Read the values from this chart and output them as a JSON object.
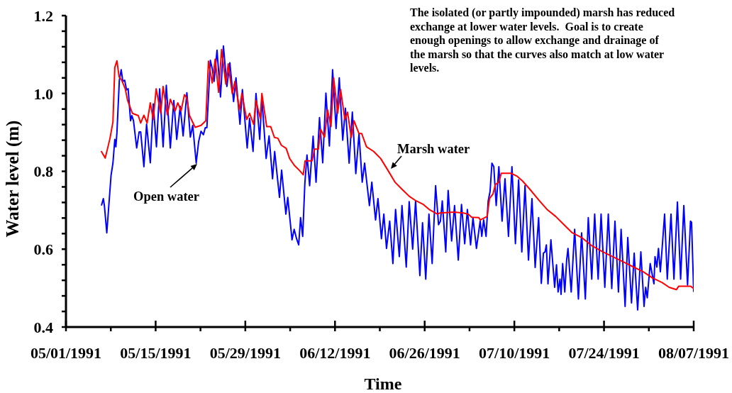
{
  "chart_data": {
    "type": "line",
    "xlabel": "Time",
    "ylabel": "Water level (m)",
    "annotations": [
      "The isolated (or partly impounded) marsh has reduced\nexchange at lower water levels.  Goal is to create\nenough openings to allow exchange and drainage of\nthe marsh so that the curves also match at low water\nlevels."
    ],
    "xlim": [
      "1991-05-01",
      "1991-08-07"
    ],
    "xticks": [
      {
        "value": "1991-05-01",
        "label": "05/01/1991"
      },
      {
        "value": "1991-05-08",
        "label": null
      },
      {
        "value": "1991-05-15",
        "label": "05/15/1991"
      },
      {
        "value": "1991-05-22",
        "label": null
      },
      {
        "value": "1991-05-29",
        "label": "05/29/1991"
      },
      {
        "value": "1991-06-05",
        "label": null
      },
      {
        "value": "1991-06-12",
        "label": "06/12/1991"
      },
      {
        "value": "1991-06-19",
        "label": null
      },
      {
        "value": "1991-06-26",
        "label": "06/26/1991"
      },
      {
        "value": "1991-07-03",
        "label": null
      },
      {
        "value": "1991-07-10",
        "label": "07/10/1991"
      },
      {
        "value": "1991-07-17",
        "label": null
      },
      {
        "value": "1991-07-24",
        "label": "07/24/1991"
      },
      {
        "value": "1991-07-31",
        "label": null
      },
      {
        "value": "1991-08-07",
        "label": "08/07/1991"
      }
    ],
    "ylim": [
      0.4,
      1.2
    ],
    "yticks": [
      0.4,
      {
        "value": 0.44,
        "label": null
      },
      {
        "value": 0.48,
        "label": null
      },
      {
        "value": 0.52,
        "label": null
      },
      {
        "value": 0.56,
        "label": null
      },
      0.6,
      {
        "value": 0.64,
        "label": null
      },
      {
        "value": 0.68,
        "label": null
      },
      {
        "value": 0.72,
        "label": null
      },
      {
        "value": 0.76,
        "label": null
      },
      0.8,
      {
        "value": 0.84,
        "label": null
      },
      {
        "value": 0.88,
        "label": null
      },
      {
        "value": 0.92,
        "label": null
      },
      {
        "value": 0.96,
        "label": null
      },
      {
        "value": 1,
        "label": "1.0"
      },
      {
        "value": 1.04,
        "label": null
      },
      {
        "value": 1.08,
        "label": null
      },
      {
        "value": 1.12,
        "label": null
      },
      {
        "value": 1.16,
        "label": null
      },
      1.2
    ],
    "series": [
      {
        "name": "Open water",
        "color": "#0000ff",
        "x": [
          "1991-05-06T13:00",
          "1991-05-06T20:00",
          "1991-05-07T00:00",
          "1991-05-07T09:00",
          "1991-05-08T01:00",
          "1991-05-08T08:00",
          "1991-05-08T15:00",
          "1991-05-08T19:00",
          "1991-05-08T23:00",
          "1991-05-09T08:00",
          "1991-05-09T15:00",
          "1991-05-09T21:00",
          "1991-05-10T04:00",
          "1991-05-10T11:00",
          "1991-05-10T17:00",
          "1991-05-11T02:00",
          "1991-05-11T07:00",
          "1991-05-11T13:00",
          "1991-05-12T01:00",
          "1991-05-12T10:00",
          "1991-05-12T16:00",
          "1991-05-13T04:00",
          "1991-05-13T14:00",
          "1991-05-14T04:00",
          "1991-05-14T15:00",
          "1991-05-15T03:00",
          "1991-05-15T15:00",
          "1991-05-16T04:00",
          "1991-05-16T16:00",
          "1991-05-17T07:00",
          "1991-05-17T20:00",
          "1991-05-18T07:00",
          "1991-05-18T20:00",
          "1991-05-19T07:00",
          "1991-05-19T21:00",
          "1991-05-20T10:00",
          "1991-05-20T19:00",
          "1991-05-21T08:00",
          "1991-05-21T17:00",
          "1991-05-22T02:00",
          "1991-05-22T11:00",
          "1991-05-22T18:00",
          "1991-05-23T00:00",
          "1991-05-23T13:00",
          "1991-05-23T20:00",
          "1991-05-24T03:00",
          "1991-05-24T14:00",
          "1991-05-25T03:00",
          "1991-05-25T14:00",
          "1991-05-26T03:00",
          "1991-05-26T14:00",
          "1991-05-27T04:00",
          "1991-05-27T13:00",
          "1991-05-28T04:00",
          "1991-05-28T13:00",
          "1991-05-29T07:00",
          "1991-05-29T16:00",
          "1991-05-30T05:00",
          "1991-05-30T16:00",
          "1991-05-31T06:00",
          "1991-05-31T14:00",
          "1991-06-01T06:00",
          "1991-06-01T17:00",
          "1991-06-02T06:00",
          "1991-06-02T14:00",
          "1991-06-03T08:00",
          "1991-06-03T16:00",
          "1991-06-04T08:00",
          "1991-06-04T15:00",
          "1991-06-05T07:00",
          "1991-06-05T15:00",
          "1991-06-06T00:00",
          "1991-06-06T08:00",
          "1991-06-06T15:00",
          "1991-06-06T23:00",
          "1991-06-07T07:00",
          "1991-06-07T15:00",
          "1991-06-08T01:00",
          "1991-06-08T14:00",
          "1991-06-09T01:00",
          "1991-06-09T14:00",
          "1991-06-10T02:00",
          "1991-06-10T14:00",
          "1991-06-11T03:00",
          "1991-06-11T15:00",
          "1991-06-12T04:00",
          "1991-06-12T16:00",
          "1991-06-13T05:00",
          "1991-06-13T15:00",
          "1991-06-14T05:00",
          "1991-06-14T17:00",
          "1991-06-15T06:00",
          "1991-06-15T18:00",
          "1991-06-16T06:00",
          "1991-06-16T15:00",
          "1991-06-17T09:00",
          "1991-06-17T18:00",
          "1991-06-18T08:00",
          "1991-06-18T17:00",
          "1991-06-19T06:00",
          "1991-06-19T15:00",
          "1991-06-20T01:00",
          "1991-06-20T13:00",
          "1991-06-21T01:00",
          "1991-06-21T11:00",
          "1991-06-22T01:00",
          "1991-06-22T11:00",
          "1991-06-23T03:00",
          "1991-06-23T14:00",
          "1991-06-24T03:00",
          "1991-06-24T14:00",
          "1991-06-25T06:00",
          "1991-06-25T16:00",
          "1991-06-26T04:00",
          "1991-06-26T16:00",
          "1991-06-27T04:00",
          "1991-06-27T17:00",
          "1991-06-28T04:00",
          "1991-06-28T11:00",
          "1991-06-28T18:00",
          "1991-06-29T07:00",
          "1991-06-29T16:00",
          "1991-06-30T05:00",
          "1991-06-30T16:00",
          "1991-07-01T06:00",
          "1991-07-01T18:00",
          "1991-07-02T06:00",
          "1991-07-02T16:00",
          "1991-07-03T04:00",
          "1991-07-03T13:00",
          "1991-07-04T02:00",
          "1991-07-04T16:00",
          "1991-07-04T22:00",
          "1991-07-05T05:00",
          "1991-07-05T14:00",
          "1991-07-05T22:00",
          "1991-07-06T05:00",
          "1991-07-06T12:00",
          "1991-07-06T19:00",
          "1991-07-07T04:00",
          "1991-07-07T14:00",
          "1991-07-08T02:00",
          "1991-07-08T13:00",
          "1991-07-09T02:00",
          "1991-07-09T15:00",
          "1991-07-10T04:00",
          "1991-07-10T16:00",
          "1991-07-11T04:00",
          "1991-07-11T16:00",
          "1991-07-12T05:00",
          "1991-07-12T18:00",
          "1991-07-13T06:00",
          "1991-07-13T19:00",
          "1991-07-14T05:00",
          "1991-07-14T13:00",
          "1991-07-14T19:00",
          "1991-07-15T00:00",
          "1991-07-15T06:00",
          "1991-07-15T17:00",
          "1991-07-16T07:00",
          "1991-07-16T14:00",
          "1991-07-16T20:00",
          "1991-07-17T03:00",
          "1991-07-17T07:00",
          "1991-07-17T13:00",
          "1991-07-17T21:00",
          "1991-07-18T04:00",
          "1991-07-18T09:00",
          "1991-07-18T21:00",
          "1991-07-19T10:00",
          "1991-07-20T00:00",
          "1991-07-20T12:00",
          "1991-07-21T02:00",
          "1991-07-21T13:00",
          "1991-07-22T02:00",
          "1991-07-22T13:00",
          "1991-07-23T02:00",
          "1991-07-23T13:00",
          "1991-07-24T03:00",
          "1991-07-24T16:00",
          "1991-07-25T05:00",
          "1991-07-25T17:00",
          "1991-07-26T06:00",
          "1991-07-26T16:00",
          "1991-07-27T07:00",
          "1991-07-27T17:00",
          "1991-07-28T07:00",
          "1991-07-28T17:00",
          "1991-07-29T06:00",
          "1991-07-29T18:00",
          "1991-07-30T06:00",
          "1991-07-30T12:00",
          "1991-07-30T18:00",
          "1991-07-31T05:00",
          "1991-07-31T19:00",
          "1991-07-31T23:00",
          "1991-08-01T06:00",
          "1991-08-01T12:00",
          "1991-08-01T19:00",
          "1991-08-02T02:00",
          "1991-08-02T11:00",
          "1991-08-02T21:00",
          "1991-08-03T11:00",
          "1991-08-03T22:00",
          "1991-08-04T11:00",
          "1991-08-04T23:00",
          "1991-08-05T11:00",
          "1991-08-06T01:00",
          "1991-08-06T12:00",
          "1991-08-06T16:00",
          "1991-08-07T00:00"
        ],
        "values": [
          0.712,
          0.73,
          0.712,
          0.642,
          0.79,
          0.821,
          0.882,
          0.863,
          0.9,
          1.034,
          1.061,
          1.031,
          1.034,
          1.009,
          1.012,
          0.93,
          0.943,
          0.93,
          0.86,
          0.901,
          0.901,
          0.812,
          0.921,
          0.822,
          0.973,
          0.863,
          1.012,
          0.863,
          1.021,
          0.86,
          0.982,
          0.882,
          0.967,
          0.891,
          1.002,
          0.888,
          0.918,
          0.821,
          0.876,
          0.903,
          0.894,
          0.912,
          0.912,
          1.085,
          1.064,
          1.031,
          1.111,
          0.991,
          1.122,
          1.018,
          1.079,
          0.979,
          1.04,
          0.921,
          1.01,
          0.86,
          0.936,
          0.851,
          1.0,
          0.882,
          0.988,
          0.833,
          0.891,
          0.781,
          0.851,
          0.733,
          0.803,
          0.69,
          0.733,
          0.624,
          0.651,
          0.627,
          0.611,
          0.681,
          0.633,
          0.768,
          0.842,
          0.763,
          0.89,
          0.772,
          0.938,
          0.822,
          1.001,
          0.865,
          1.061,
          0.91,
          1.04,
          0.88,
          0.962,
          0.821,
          0.952,
          0.794,
          0.897,
          0.772,
          0.821,
          0.712,
          0.772,
          0.675,
          0.73,
          0.627,
          0.69,
          0.602,
          0.672,
          0.563,
          0.702,
          0.581,
          0.712,
          0.554,
          0.722,
          0.6,
          0.724,
          0.532,
          0.668,
          0.523,
          0.69,
          0.563,
          0.763,
          0.663,
          0.672,
          0.724,
          0.593,
          0.751,
          0.621,
          0.712,
          0.572,
          0.715,
          0.614,
          0.702,
          0.611,
          0.681,
          0.602,
          0.672,
          0.633,
          0.675,
          0.633,
          0.724,
          0.748,
          0.821,
          0.812,
          0.712,
          0.812,
          0.672,
          0.781,
          0.633,
          0.812,
          0.614,
          0.778,
          0.593,
          0.763,
          0.572,
          0.73,
          0.553,
          0.681,
          0.512,
          0.59,
          0.593,
          0.611,
          0.511,
          0.624,
          0.502,
          0.56,
          0.49,
          0.523,
          0.484,
          0.563,
          0.49,
          0.572,
          0.602,
          0.49,
          0.651,
          0.472,
          0.642,
          0.472,
          0.681,
          0.523,
          0.69,
          0.523,
          0.69,
          0.502,
          0.69,
          0.499,
          0.672,
          0.49,
          0.651,
          0.453,
          0.63,
          0.462,
          0.59,
          0.444,
          0.593,
          0.453,
          0.502,
          0.475,
          0.563,
          0.511,
          0.581,
          0.554,
          0.602,
          0.542,
          0.605,
          0.69,
          0.523,
          0.69,
          0.523,
          0.721,
          0.523,
          0.712,
          0.508,
          0.672,
          0.669,
          0.49
        ]
      },
      {
        "name": "Marsh water",
        "color": "#ff0000",
        "x": [
          "1991-05-06T12:00",
          "1991-05-07T03:00",
          "1991-05-07T12:00",
          "1991-05-07T21:00",
          "1991-05-08T08:00",
          "1991-05-08T15:00",
          "1991-05-08T23:00",
          "1991-05-09T07:00",
          "1991-05-09T17:00",
          "1991-05-10T06:00",
          "1991-05-10T15:00",
          "1991-05-11T09:00",
          "1991-05-12T07:00",
          "1991-05-12T16:00",
          "1991-05-13T04:00",
          "1991-05-13T16:00",
          "1991-05-14T04:00",
          "1991-05-14T15:00",
          "1991-05-15T02:00",
          "1991-05-15T19:00",
          "1991-05-16T04:00",
          "1991-05-16T20:00",
          "1991-05-17T07:00",
          "1991-05-18T01:00",
          "1991-05-18T11:00",
          "1991-05-18T23:00",
          "1991-05-19T12:00",
          "1991-05-19T21:00",
          "1991-05-20T07:00",
          "1991-05-21T04:00",
          "1991-05-22T02:00",
          "1991-05-22T20:00",
          "1991-05-23T06:00",
          "1991-05-23T20:00",
          "1991-05-24T07:00",
          "1991-05-24T20:00",
          "1991-05-25T07:00",
          "1991-05-25T23:00",
          "1991-05-26T08:00",
          "1991-05-26T23:00",
          "1991-05-27T09:00",
          "1991-05-28T02:00",
          "1991-05-28T11:00",
          "1991-05-29T05:00",
          "1991-05-29T16:00",
          "1991-05-30T07:00",
          "1991-05-30T16:00",
          "1991-05-31T08:00",
          "1991-05-31T14:00",
          "1991-06-01T08:00",
          "1991-06-01T23:00",
          "1991-06-02T13:00",
          "1991-06-03T02:00",
          "1991-06-03T15:00",
          "1991-06-04T09:00",
          "1991-06-04T22:00",
          "1991-06-05T16:00",
          "1991-06-06T10:00",
          "1991-06-07T01:00",
          "1991-06-07T08:00",
          "1991-06-08T10:00",
          "1991-06-08T19:00",
          "1991-06-09T10:00",
          "1991-06-09T18:00",
          "1991-06-10T09:00",
          "1991-06-10T20:00",
          "1991-06-11T09:00",
          "1991-06-11T19:00",
          "1991-06-12T10:00",
          "1991-06-12T21:00",
          "1991-06-13T13:00",
          "1991-06-13T23:00",
          "1991-06-14T13:00",
          "1991-06-14T23:00",
          "1991-06-15T18:00",
          "1991-06-16T04:00",
          "1991-06-16T22:00",
          "1991-06-18T01:00",
          "1991-06-19T03:00",
          "1991-06-20T06:00",
          "1991-06-21T09:00",
          "1991-06-22T11:00",
          "1991-06-23T14:00",
          "1991-06-24T16:00",
          "1991-06-25T19:00",
          "1991-06-26T17:00",
          "1991-06-28T00:00",
          "1991-06-28T09:00",
          "1991-06-30T14:00",
          "1991-07-02T01:00",
          "1991-07-02T19:00",
          "1991-07-03T08:00",
          "1991-07-04T11:00",
          "1991-07-04T16:00",
          "1991-07-05T18:00",
          "1991-07-06T03:00",
          "1991-07-06T16:00",
          "1991-07-07T01:00",
          "1991-07-07T14:00",
          "1991-07-07T23:00",
          "1991-07-09T11:00",
          "1991-07-10T09:00",
          "1991-07-11T07:00",
          "1991-07-12T10:00",
          "1991-07-13T21:00",
          "1991-07-15T04:00",
          "1991-07-16T11:00",
          "1991-07-17T18:00",
          "1991-07-19T01:00",
          "1991-07-20T12:00",
          "1991-07-22T00:00",
          "1991-07-23T20:00",
          "1991-07-25T17:00",
          "1991-07-27T04:00",
          "1991-07-28T15:00",
          "1991-07-30T03:00",
          "1991-07-31T14:00",
          "1991-08-02T02:00",
          "1991-08-03T04:00",
          "1991-08-04T07:00",
          "1991-08-04T16:00",
          "1991-08-06T12:00",
          "1991-08-07T00:00"
        ],
        "values": [
          0.852,
          0.834,
          0.859,
          0.885,
          0.927,
          1.067,
          1.084,
          1.043,
          1.034,
          1.012,
          0.982,
          0.949,
          0.943,
          0.924,
          0.944,
          0.924,
          0.976,
          0.933,
          1.012,
          0.949,
          1.018,
          0.945,
          0.985,
          0.955,
          0.976,
          0.955,
          0.997,
          0.988,
          0.943,
          0.913,
          0.918,
          0.93,
          1.083,
          1.027,
          1.088,
          1.003,
          1.113,
          1.024,
          1.076,
          1.0,
          1.031,
          0.958,
          1.0,
          0.933,
          0.949,
          0.921,
          0.982,
          0.936,
          1.0,
          0.915,
          0.915,
          0.887,
          0.885,
          0.867,
          0.859,
          0.833,
          0.815,
          0.803,
          0.791,
          0.827,
          0.827,
          0.857,
          0.857,
          0.908,
          0.888,
          0.958,
          0.915,
          1.04,
          0.949,
          1.01,
          0.933,
          0.952,
          0.887,
          0.93,
          0.897,
          0.897,
          0.863,
          0.851,
          0.833,
          0.803,
          0.772,
          0.754,
          0.736,
          0.724,
          0.715,
          0.702,
          0.69,
          0.693,
          0.695,
          0.693,
          0.69,
          0.682,
          0.681,
          0.675,
          0.684,
          0.73,
          0.742,
          0.766,
          0.772,
          0.795,
          0.795,
          0.788,
          0.775,
          0.754,
          0.725,
          0.701,
          0.684,
          0.663,
          0.642,
          0.63,
          0.61,
          0.593,
          0.578,
          0.566,
          0.554,
          0.542,
          0.526,
          0.514,
          0.502,
          0.496,
          0.505,
          0.505,
          0.499
        ]
      }
    ]
  }
}
